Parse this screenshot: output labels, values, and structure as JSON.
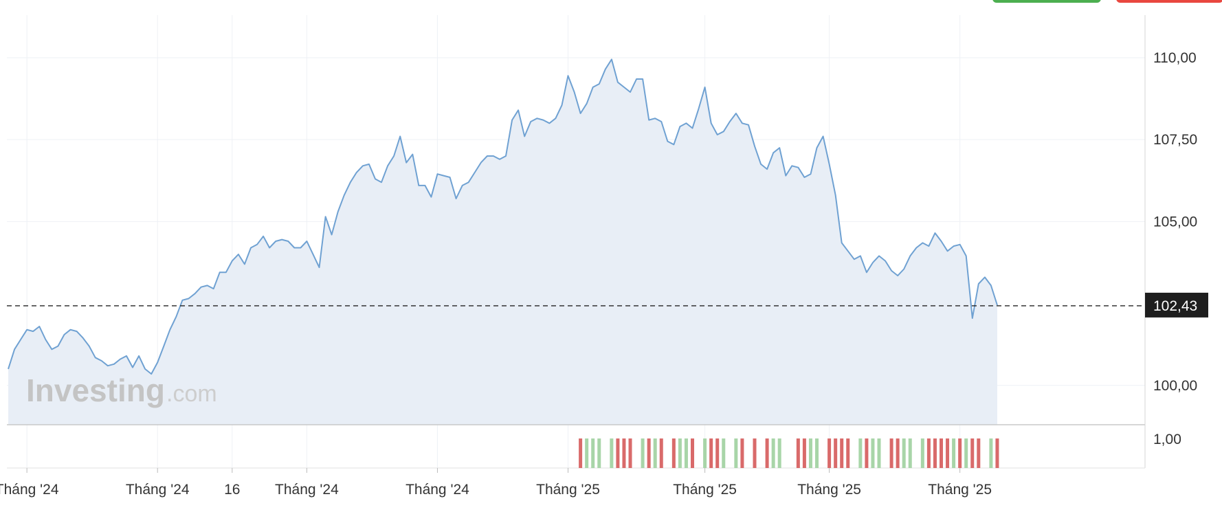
{
  "header": {
    "buy_button_color": "#4caf50",
    "sell_button_color": "#e9473f"
  },
  "watermark": {
    "brand": "Investing",
    "suffix": ".com"
  },
  "chart_data": {
    "type": "area",
    "grid": true,
    "price_axis": {
      "ticks": [
        "110,00",
        "107,50",
        "105,00",
        "100,00"
      ],
      "tick_values": [
        110,
        107.5,
        105,
        100
      ],
      "ylim": [
        98.8,
        111.3
      ]
    },
    "current_price": {
      "value": 102.43,
      "label": "102,43"
    },
    "x_ticks": [
      {
        "label": "Tháng '24",
        "index": 3
      },
      {
        "label": "Tháng '24",
        "index": 24
      },
      {
        "label": "16",
        "index": 36
      },
      {
        "label": "Tháng '24",
        "index": 48
      },
      {
        "label": "Tháng '24",
        "index": 69
      },
      {
        "label": "Tháng '25",
        "index": 90
      },
      {
        "label": "Tháng '25",
        "index": 112
      },
      {
        "label": "Tháng '25",
        "index": 132
      },
      {
        "label": "Tháng '25",
        "index": 153
      }
    ],
    "volume_axis": {
      "ticks": [
        "1,00"
      ]
    },
    "values": [
      100.5,
      101.1,
      101.4,
      101.7,
      101.65,
      101.8,
      101.4,
      101.1,
      101.2,
      101.55,
      101.7,
      101.65,
      101.45,
      101.2,
      100.85,
      100.75,
      100.6,
      100.65,
      100.8,
      100.9,
      100.55,
      100.9,
      100.5,
      100.35,
      100.7,
      101.2,
      101.7,
      102.1,
      102.6,
      102.65,
      102.8,
      103.0,
      103.05,
      102.95,
      103.45,
      103.45,
      103.8,
      104.0,
      103.7,
      104.2,
      104.3,
      104.55,
      104.2,
      104.4,
      104.45,
      104.4,
      104.2,
      104.2,
      104.4,
      104.0,
      103.6,
      105.15,
      104.6,
      105.3,
      105.8,
      106.2,
      106.5,
      106.7,
      106.75,
      106.3,
      106.2,
      106.7,
      107.0,
      107.6,
      106.8,
      107.05,
      106.1,
      106.1,
      105.75,
      106.45,
      106.4,
      106.35,
      105.7,
      106.1,
      106.2,
      106.5,
      106.8,
      107.0,
      107.0,
      106.9,
      107.0,
      108.1,
      108.4,
      107.6,
      108.05,
      108.15,
      108.1,
      108.0,
      108.15,
      108.55,
      109.45,
      108.95,
      108.3,
      108.6,
      109.1,
      109.2,
      109.65,
      109.95,
      109.25,
      109.1,
      108.95,
      109.35,
      109.35,
      108.1,
      108.15,
      108.05,
      107.45,
      107.35,
      107.9,
      108.0,
      107.85,
      108.45,
      109.1,
      108.0,
      107.65,
      107.75,
      108.05,
      108.3,
      108.0,
      107.95,
      107.3,
      106.75,
      106.6,
      107.1,
      107.25,
      106.4,
      106.7,
      106.65,
      106.35,
      106.45,
      107.25,
      107.6,
      106.75,
      105.8,
      104.35,
      104.1,
      103.85,
      103.95,
      103.45,
      103.75,
      103.95,
      103.8,
      103.5,
      103.35,
      103.55,
      103.95,
      104.2,
      104.35,
      104.25,
      104.65,
      104.4,
      104.1,
      104.25,
      104.3,
      103.95,
      102.05,
      103.1,
      103.3,
      103.05,
      102.45
    ],
    "volume_bars": [
      {
        "index": 92,
        "dir": "down"
      },
      {
        "index": 93,
        "dir": "up"
      },
      {
        "index": 94,
        "dir": "up"
      },
      {
        "index": 95,
        "dir": "up"
      },
      {
        "index": 97,
        "dir": "up"
      },
      {
        "index": 98,
        "dir": "down"
      },
      {
        "index": 99,
        "dir": "down"
      },
      {
        "index": 100,
        "dir": "down"
      },
      {
        "index": 102,
        "dir": "up"
      },
      {
        "index": 103,
        "dir": "down"
      },
      {
        "index": 104,
        "dir": "up"
      },
      {
        "index": 105,
        "dir": "down"
      },
      {
        "index": 107,
        "dir": "down"
      },
      {
        "index": 108,
        "dir": "up"
      },
      {
        "index": 109,
        "dir": "up"
      },
      {
        "index": 110,
        "dir": "down"
      },
      {
        "index": 112,
        "dir": "up"
      },
      {
        "index": 113,
        "dir": "down"
      },
      {
        "index": 114,
        "dir": "down"
      },
      {
        "index": 115,
        "dir": "up"
      },
      {
        "index": 117,
        "dir": "up"
      },
      {
        "index": 118,
        "dir": "down"
      },
      {
        "index": 120,
        "dir": "down"
      },
      {
        "index": 122,
        "dir": "down"
      },
      {
        "index": 123,
        "dir": "up"
      },
      {
        "index": 124,
        "dir": "up"
      },
      {
        "index": 127,
        "dir": "down"
      },
      {
        "index": 128,
        "dir": "down"
      },
      {
        "index": 129,
        "dir": "up"
      },
      {
        "index": 130,
        "dir": "up"
      },
      {
        "index": 132,
        "dir": "down"
      },
      {
        "index": 133,
        "dir": "down"
      },
      {
        "index": 134,
        "dir": "down"
      },
      {
        "index": 135,
        "dir": "down"
      },
      {
        "index": 137,
        "dir": "up"
      },
      {
        "index": 138,
        "dir": "down"
      },
      {
        "index": 139,
        "dir": "up"
      },
      {
        "index": 140,
        "dir": "up"
      },
      {
        "index": 142,
        "dir": "down"
      },
      {
        "index": 143,
        "dir": "down"
      },
      {
        "index": 144,
        "dir": "up"
      },
      {
        "index": 145,
        "dir": "up"
      },
      {
        "index": 147,
        "dir": "up"
      },
      {
        "index": 148,
        "dir": "down"
      },
      {
        "index": 149,
        "dir": "down"
      },
      {
        "index": 150,
        "dir": "down"
      },
      {
        "index": 151,
        "dir": "down"
      },
      {
        "index": 152,
        "dir": "up"
      },
      {
        "index": 153,
        "dir": "down"
      },
      {
        "index": 154,
        "dir": "up"
      },
      {
        "index": 155,
        "dir": "down"
      },
      {
        "index": 156,
        "dir": "down"
      },
      {
        "index": 158,
        "dir": "up"
      },
      {
        "index": 159,
        "dir": "down"
      }
    ],
    "colors": {
      "line": "#6fa1d2",
      "area": "#e8eef6",
      "up": "#a8d5a8",
      "down": "#d96a6a",
      "grid": "#eef1f5",
      "price_tag_bg": "#1e1e1e",
      "price_tag_text": "#ffffff",
      "axis_text": "#333333"
    }
  }
}
